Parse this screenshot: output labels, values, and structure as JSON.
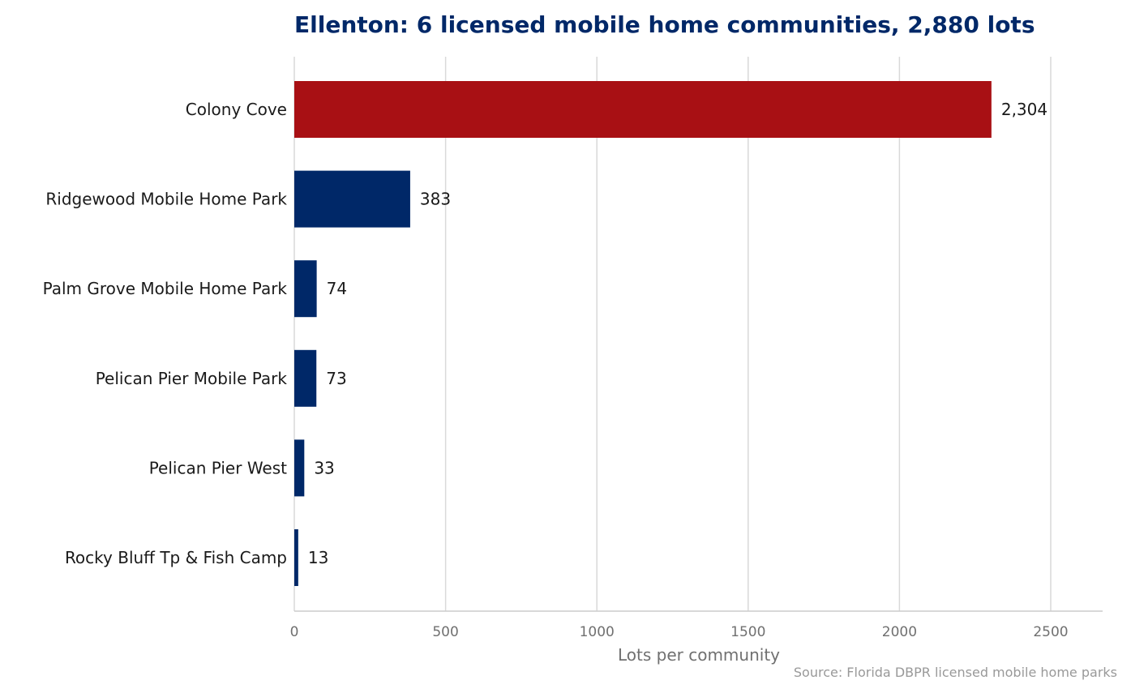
{
  "chart_data": {
    "type": "bar",
    "orientation": "horizontal",
    "title": "Ellenton: 6 licensed mobile home communities, 2,880 lots",
    "xlabel": "Lots per community",
    "ylabel": "",
    "source": "Source: Florida DBPR licensed mobile home parks",
    "categories": [
      "Colony Cove",
      "Ridgewood Mobile Home Park",
      "Palm Grove Mobile Home Park",
      "Pelican Pier Mobile Park",
      "Pelican Pier West",
      "Rocky Bluff Tp & Fish Camp"
    ],
    "values": [
      2304,
      383,
      74,
      73,
      33,
      13
    ],
    "value_labels": [
      "2,304",
      "383",
      "74",
      "73",
      "33",
      "13"
    ],
    "xlim": [
      0,
      2670
    ],
    "xticks": [
      0,
      500,
      1000,
      1500,
      2000,
      2500
    ],
    "grid": "vertical",
    "colors": {
      "highlight": "#a81014",
      "default": "#002868",
      "title": "#002868"
    }
  }
}
